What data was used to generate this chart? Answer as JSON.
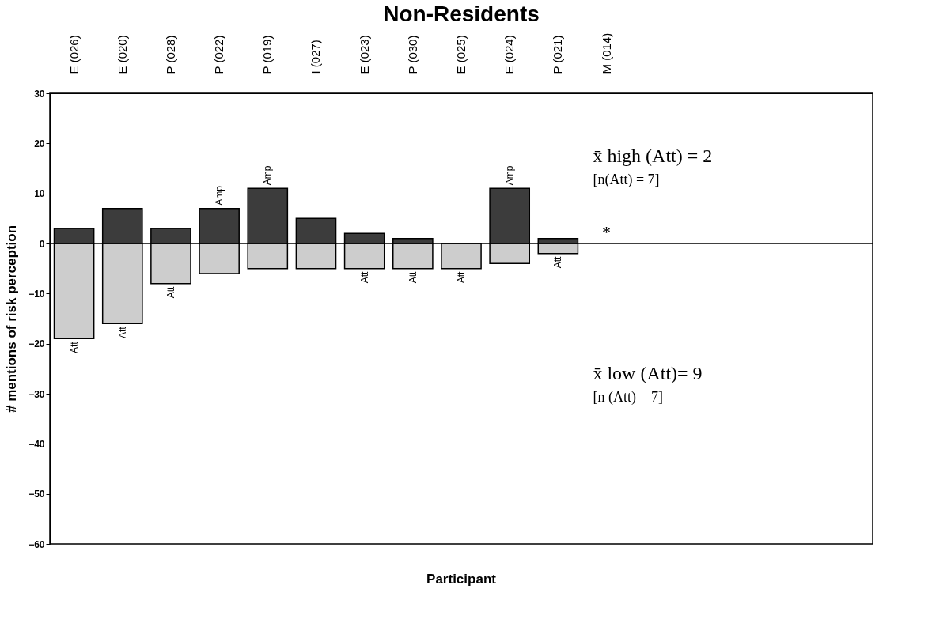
{
  "chart_data": {
    "type": "bar",
    "title": "Non-Residents",
    "xlabel": "Participant",
    "ylabel": "# mentions of risk perception",
    "categories": [
      "E (026)",
      "E (020)",
      "P (028)",
      "P (022)",
      "P (019)",
      "I (027)",
      "E (023)",
      "P (030)",
      "E (025)",
      "E (024)",
      "P (021)",
      "M (014)",
      null,
      null,
      null,
      null,
      null
    ],
    "series": [
      {
        "color": "#3c3c3c",
        "values": [
          3,
          7,
          3,
          7,
          11,
          5,
          2,
          1,
          0,
          11,
          1,
          null,
          null,
          null,
          null,
          null,
          null
        ],
        "value_labels": [
          null,
          null,
          null,
          "Amp",
          "Amp",
          null,
          null,
          null,
          null,
          "Amp",
          null,
          null,
          null,
          null,
          null,
          null,
          null
        ]
      },
      {
        "color": "#cdcdcd",
        "values": [
          -19,
          -16,
          -8,
          -6,
          -5,
          -5,
          -5,
          -5,
          -5,
          -4,
          -2,
          null,
          null,
          null,
          null,
          null,
          null
        ],
        "value_labels": [
          "Att",
          "Att",
          "Att",
          null,
          null,
          null,
          "Att",
          "Att",
          "Att",
          null,
          "Att",
          null,
          null,
          null,
          null,
          null,
          null
        ]
      }
    ],
    "stacked": true,
    "ylim": [
      -60,
      30
    ],
    "yticks": [
      -60,
      -50,
      -40,
      -30,
      -20,
      -10,
      0,
      10,
      20,
      30
    ],
    "grid": false,
    "legend": false,
    "ref_lines": [
      {
        "axis": "y",
        "value": 0,
        "color": "#000000"
      }
    ],
    "annotations": [
      "*",
      "x̄ high (Att) = 2",
      "[n(Att) = 7]",
      "x̄ low (Att)= 9",
      "[n (Att) = 7]"
    ]
  }
}
